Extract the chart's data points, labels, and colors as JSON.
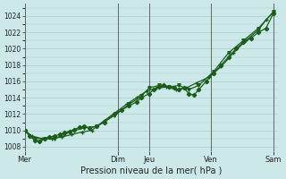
{
  "xlabel": "Pression niveau de la mer( hPa )",
  "background_color": "#cce8e8",
  "grid_color": "#aacfcf",
  "line_color": "#1a5c1a",
  "ylim": [
    1007.5,
    1025.5
  ],
  "yticks": [
    1008,
    1010,
    1012,
    1014,
    1016,
    1018,
    1020,
    1022,
    1024
  ],
  "day_labels": [
    "Mer",
    "Dim",
    "Jeu",
    "Ven",
    "Sam"
  ],
  "day_positions": [
    0,
    0.375,
    0.5,
    0.75,
    1.0
  ],
  "series1_x": [
    0.0,
    0.02,
    0.04,
    0.06,
    0.08,
    0.1,
    0.12,
    0.14,
    0.16,
    0.18,
    0.2,
    0.22,
    0.24,
    0.26,
    0.29,
    0.32,
    0.36,
    0.39,
    0.42,
    0.45,
    0.47,
    0.5,
    0.52,
    0.54,
    0.56,
    0.58,
    0.6,
    0.62,
    0.64,
    0.66,
    0.68,
    0.7,
    0.73,
    0.76,
    0.79,
    0.82,
    0.85,
    0.88,
    0.91,
    0.94,
    0.97,
    1.0
  ],
  "series1_y": [
    1010.0,
    1009.3,
    1008.8,
    1008.7,
    1009.0,
    1009.2,
    1009.3,
    1009.5,
    1009.7,
    1009.9,
    1010.1,
    1010.4,
    1010.5,
    1010.3,
    1010.5,
    1011.0,
    1012.0,
    1012.5,
    1013.0,
    1013.5,
    1014.0,
    1014.5,
    1015.0,
    1015.3,
    1015.5,
    1015.3,
    1015.2,
    1015.0,
    1015.2,
    1014.5,
    1014.3,
    1015.0,
    1016.0,
    1017.0,
    1018.0,
    1019.0,
    1020.0,
    1020.8,
    1021.3,
    1022.0,
    1022.5,
    1024.3
  ],
  "series2_x": [
    0.0,
    0.04,
    0.08,
    0.12,
    0.16,
    0.2,
    0.24,
    0.29,
    0.36,
    0.42,
    0.47,
    0.5,
    0.54,
    0.58,
    0.62,
    0.66,
    0.7,
    0.76,
    0.82,
    0.88,
    0.94,
    1.0
  ],
  "series2_y": [
    1010.0,
    1009.0,
    1009.0,
    1009.0,
    1009.5,
    1010.0,
    1010.3,
    1010.5,
    1011.8,
    1013.2,
    1014.2,
    1015.2,
    1015.5,
    1015.3,
    1015.5,
    1015.0,
    1015.5,
    1017.2,
    1019.5,
    1021.0,
    1022.5,
    1024.5
  ],
  "series3_x": [
    0.0,
    0.03,
    0.07,
    0.11,
    0.15,
    0.19,
    0.23,
    0.27,
    0.32,
    0.37,
    0.41,
    0.45,
    0.49,
    0.53,
    0.57,
    0.61,
    0.65,
    0.69,
    0.74,
    0.79,
    0.84,
    0.89,
    0.94,
    0.97,
    1.0
  ],
  "series3_y": [
    1010.0,
    1009.3,
    1009.0,
    1009.0,
    1009.2,
    1009.5,
    1009.8,
    1010.0,
    1011.2,
    1012.3,
    1013.2,
    1014.0,
    1014.8,
    1015.2,
    1015.3,
    1015.0,
    1015.2,
    1015.8,
    1016.5,
    1017.8,
    1019.5,
    1021.0,
    1022.3,
    1023.5,
    1024.5
  ]
}
